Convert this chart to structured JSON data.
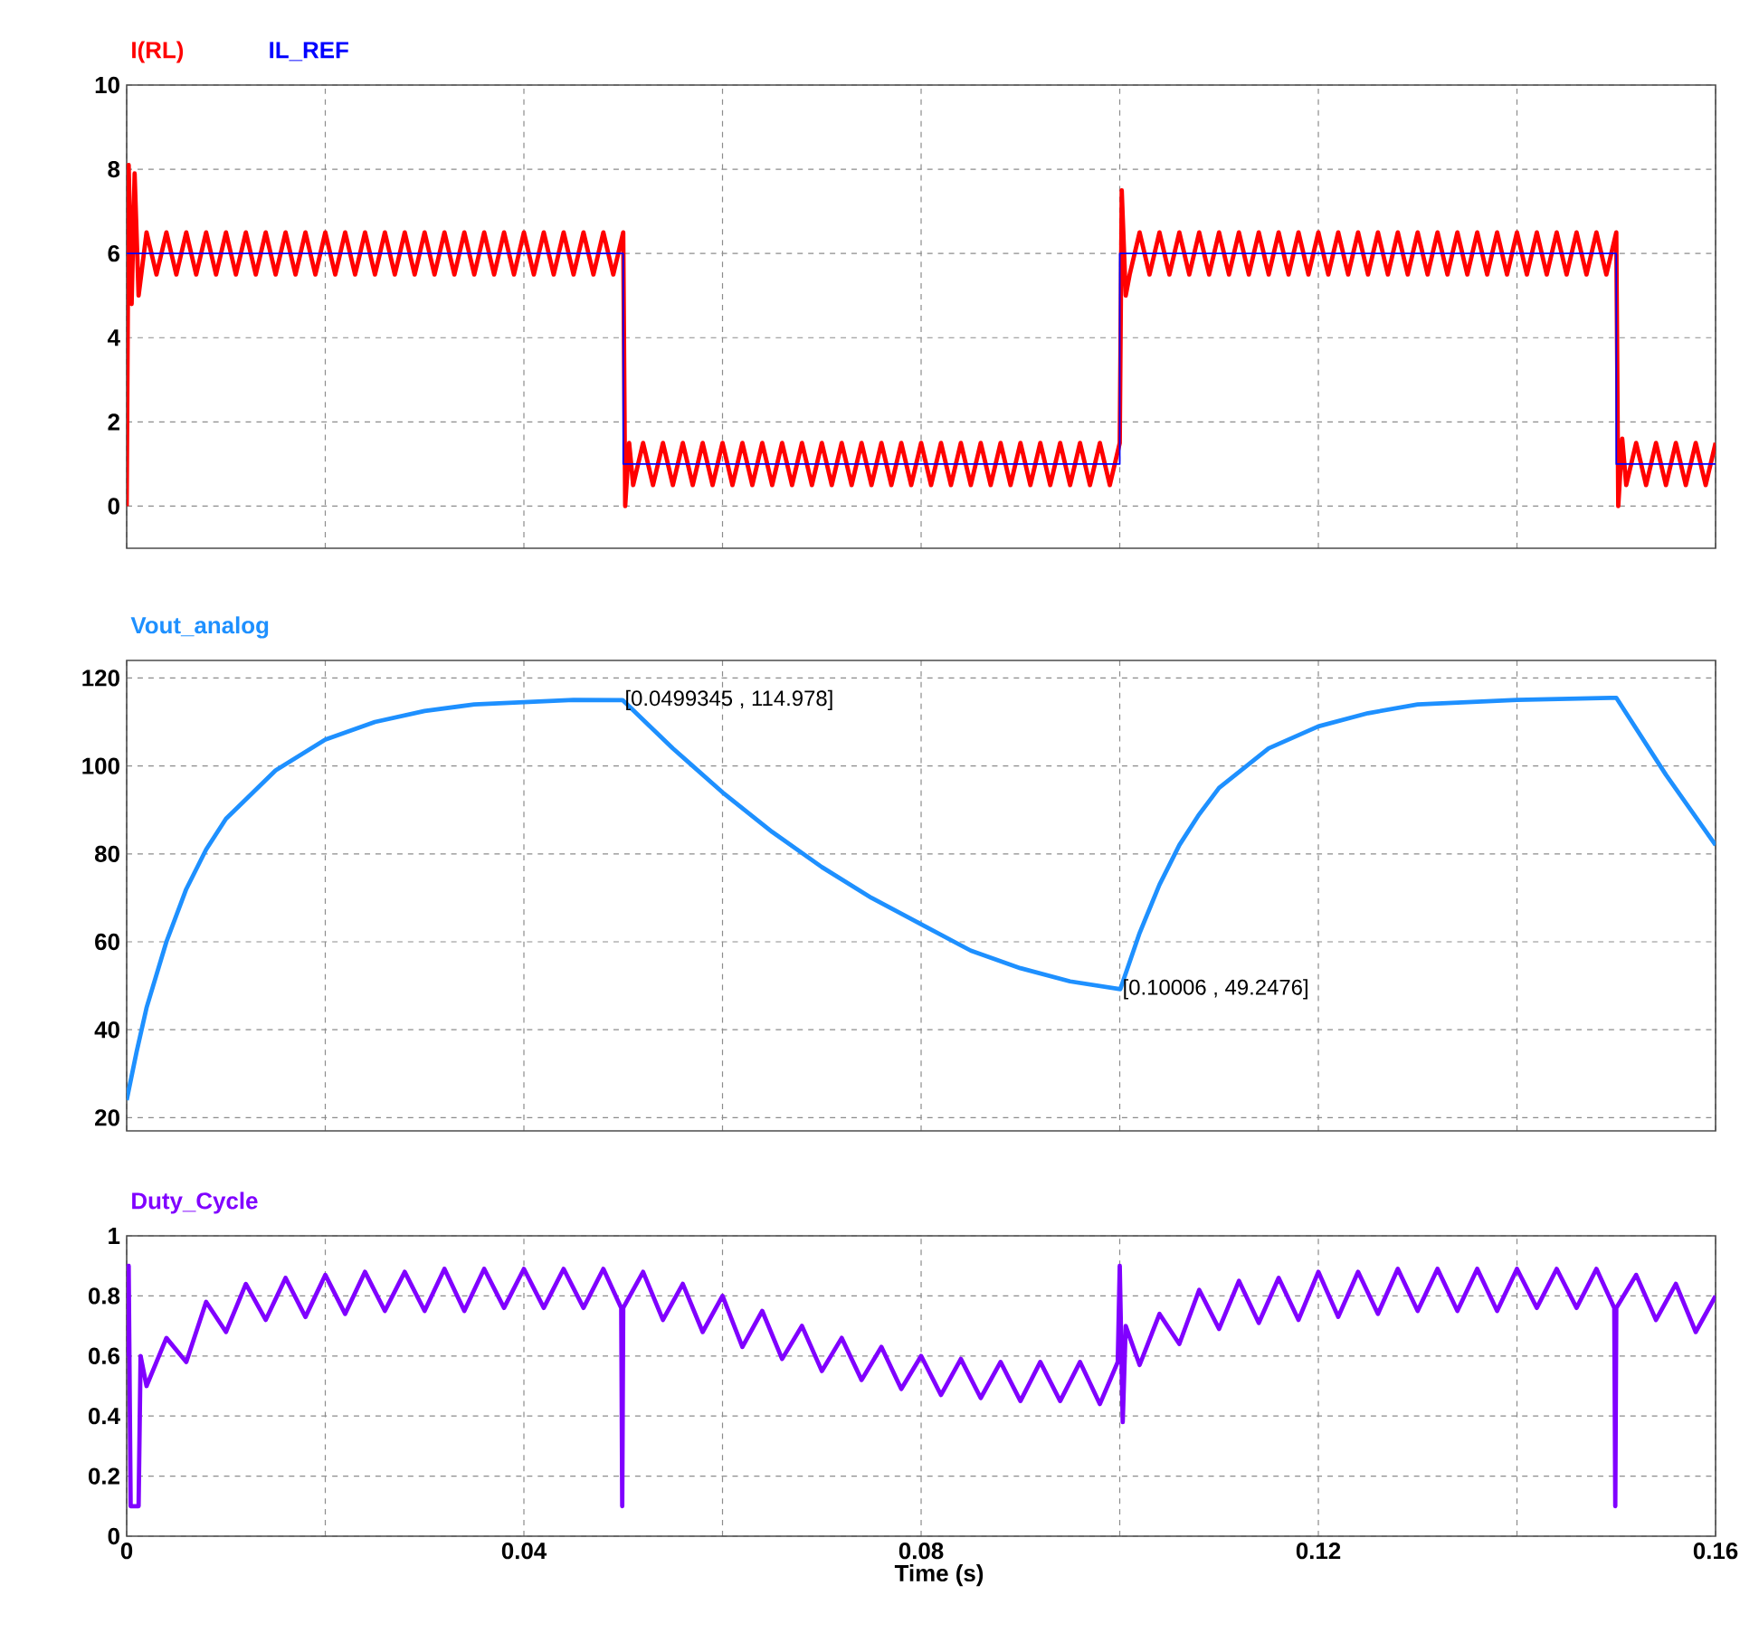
{
  "chart_data": [
    {
      "type": "line",
      "xlim": [
        0,
        0.16
      ],
      "ylim": [
        -1,
        10
      ],
      "grid": true,
      "tick_labels": "y",
      "xticks": [
        0,
        {
          "value": 0.02,
          "label": null
        },
        0.04,
        {
          "value": 0.06,
          "label": null
        },
        0.08,
        {
          "value": 0.1,
          "label": null
        },
        0.12,
        {
          "value": 0.14,
          "label": null
        },
        0.16
      ],
      "yticks": [
        0,
        2,
        4,
        6,
        8,
        10
      ],
      "series": [
        {
          "name": "I(RL)",
          "color": "#ff0000",
          "x": [
            0,
            0.0002,
            0.0005,
            0.0008,
            0.0012,
            0.002,
            0.003,
            0.004,
            0.005,
            0.006,
            0.007,
            0.008,
            0.009,
            0.01,
            0.011,
            0.012,
            0.013,
            0.014,
            0.015,
            0.016,
            0.017,
            0.018,
            0.019,
            0.02,
            0.021,
            0.022,
            0.023,
            0.024,
            0.025,
            0.026,
            0.027,
            0.028,
            0.029,
            0.03,
            0.031,
            0.032,
            0.033,
            0.034,
            0.035,
            0.036,
            0.037,
            0.038,
            0.039,
            0.04,
            0.041,
            0.042,
            0.043,
            0.044,
            0.045,
            0.046,
            0.047,
            0.048,
            0.049,
            0.05,
            0.0502,
            0.0506,
            0.051,
            0.052,
            0.053,
            0.054,
            0.055,
            0.056,
            0.057,
            0.058,
            0.059,
            0.06,
            0.061,
            0.062,
            0.063,
            0.064,
            0.065,
            0.066,
            0.067,
            0.068,
            0.069,
            0.07,
            0.071,
            0.072,
            0.073,
            0.074,
            0.075,
            0.076,
            0.077,
            0.078,
            0.079,
            0.08,
            0.081,
            0.082,
            0.083,
            0.084,
            0.085,
            0.086,
            0.087,
            0.088,
            0.089,
            0.09,
            0.091,
            0.092,
            0.093,
            0.094,
            0.095,
            0.096,
            0.097,
            0.098,
            0.099,
            0.1,
            0.1002,
            0.1006,
            0.101,
            0.102,
            0.103,
            0.104,
            0.105,
            0.106,
            0.107,
            0.108,
            0.109,
            0.11,
            0.111,
            0.112,
            0.113,
            0.114,
            0.115,
            0.116,
            0.117,
            0.118,
            0.119,
            0.12,
            0.121,
            0.122,
            0.123,
            0.124,
            0.125,
            0.126,
            0.127,
            0.128,
            0.129,
            0.13,
            0.131,
            0.132,
            0.133,
            0.134,
            0.135,
            0.136,
            0.137,
            0.138,
            0.139,
            0.14,
            0.141,
            0.142,
            0.143,
            0.144,
            0.145,
            0.146,
            0.147,
            0.148,
            0.149,
            0.15,
            0.1502,
            0.1506,
            0.151,
            0.152,
            0.153,
            0.154,
            0.155,
            0.156,
            0.157,
            0.158,
            0.159,
            0.16
          ],
          "values": [
            0,
            8.1,
            4.8,
            7.9,
            5.0,
            6.5,
            5.5,
            6.5,
            5.5,
            6.5,
            5.5,
            6.5,
            5.5,
            6.5,
            5.5,
            6.5,
            5.5,
            6.5,
            5.5,
            6.5,
            5.5,
            6.5,
            5.5,
            6.5,
            5.5,
            6.5,
            5.5,
            6.5,
            5.5,
            6.5,
            5.5,
            6.5,
            5.5,
            6.5,
            5.5,
            6.5,
            5.5,
            6.5,
            5.5,
            6.5,
            5.5,
            6.5,
            5.5,
            6.5,
            5.5,
            6.5,
            5.5,
            6.5,
            5.5,
            6.5,
            5.5,
            6.5,
            5.5,
            6.5,
            0,
            1.5,
            0.5,
            1.5,
            0.5,
            1.5,
            0.5,
            1.5,
            0.5,
            1.5,
            0.5,
            1.5,
            0.5,
            1.5,
            0.5,
            1.5,
            0.5,
            1.5,
            0.5,
            1.5,
            0.5,
            1.5,
            0.5,
            1.5,
            0.5,
            1.5,
            0.5,
            1.5,
            0.5,
            1.5,
            0.5,
            1.5,
            0.5,
            1.5,
            0.5,
            1.5,
            0.5,
            1.5,
            0.5,
            1.5,
            0.5,
            1.5,
            0.5,
            1.5,
            0.5,
            1.5,
            0.5,
            1.5,
            0.5,
            1.5,
            0.5,
            1.5,
            7.5,
            5.0,
            5.5,
            6.5,
            5.5,
            6.5,
            5.5,
            6.5,
            5.5,
            6.5,
            5.5,
            6.5,
            5.5,
            6.5,
            5.5,
            6.5,
            5.5,
            6.5,
            5.5,
            6.5,
            5.5,
            6.5,
            5.5,
            6.5,
            5.5,
            6.5,
            5.5,
            6.5,
            5.5,
            6.5,
            5.5,
            6.5,
            5.5,
            6.5,
            5.5,
            6.5,
            5.5,
            6.5,
            5.5,
            6.5,
            5.5,
            6.5,
            5.5,
            6.5,
            5.5,
            6.5,
            5.5,
            6.5,
            5.5,
            6.5,
            5.5,
            6.5,
            0,
            1.6,
            0.5,
            1.5,
            0.5,
            1.5,
            0.5,
            1.5,
            0.5,
            1.5,
            0.5,
            1.5
          ]
        },
        {
          "name": "IL_REF",
          "color": "#0000ff",
          "x": [
            0,
            0.05,
            0.05,
            0.1,
            0.1,
            0.15,
            0.15,
            0.16
          ],
          "values": [
            6,
            6,
            1,
            1,
            6,
            6,
            1,
            1
          ]
        }
      ]
    },
    {
      "type": "line",
      "xlim": [
        0,
        0.16
      ],
      "ylim": [
        17,
        124
      ],
      "grid": true,
      "tick_labels": "y",
      "xticks": [
        0,
        {
          "value": 0.02,
          "label": null
        },
        0.04,
        {
          "value": 0.06,
          "label": null
        },
        0.08,
        {
          "value": 0.1,
          "label": null
        },
        0.12,
        {
          "value": 0.14,
          "label": null
        },
        0.16
      ],
      "yticks": [
        20,
        40,
        60,
        80,
        100,
        120
      ],
      "annotations": [
        {
          "text": "[0.0499345 , 114.978]",
          "x": 0.0499345,
          "y": 114.978
        },
        {
          "text": "[0.10006 , 49.2476]",
          "x": 0.10006,
          "y": 49.2476
        }
      ],
      "series": [
        {
          "name": "Vout_analog",
          "color": "#1e90ff",
          "x": [
            0,
            0.001,
            0.002,
            0.004,
            0.006,
            0.008,
            0.01,
            0.015,
            0.02,
            0.025,
            0.03,
            0.035,
            0.04,
            0.045,
            0.0499345,
            0.055,
            0.06,
            0.065,
            0.07,
            0.075,
            0.08,
            0.085,
            0.09,
            0.095,
            0.10006,
            0.102,
            0.104,
            0.106,
            0.108,
            0.11,
            0.115,
            0.12,
            0.125,
            0.13,
            0.14,
            0.15,
            0.155,
            0.16
          ],
          "values": [
            24,
            35,
            45,
            60,
            72,
            81,
            88,
            99,
            106,
            110,
            112.5,
            114,
            114.5,
            115,
            114.978,
            104,
            94,
            85,
            77,
            70,
            64,
            58,
            54,
            51,
            49.2476,
            62,
            73,
            82,
            89,
            95,
            104,
            109,
            112,
            114,
            115,
            115.5,
            98,
            82
          ]
        }
      ]
    },
    {
      "type": "line",
      "xlim": [
        0,
        0.16
      ],
      "ylim": [
        0,
        1
      ],
      "grid": true,
      "xlabel": "Time (s)",
      "xticks": [
        0,
        {
          "value": 0.02,
          "label": null
        },
        0.04,
        {
          "value": 0.06,
          "label": null
        },
        0.08,
        {
          "value": 0.1,
          "label": null
        },
        0.12,
        {
          "value": 0.14,
          "label": null
        },
        0.16
      ],
      "yticks": [
        0,
        0.2,
        0.4,
        0.6,
        0.8,
        1
      ],
      "series": [
        {
          "name": "Duty_Cycle",
          "color": "#8000ff",
          "x": [
            0,
            0.0002,
            0.0004,
            0.0012,
            0.0014,
            0.002,
            0.004,
            0.006,
            0.008,
            0.01,
            0.012,
            0.014,
            0.016,
            0.018,
            0.02,
            0.022,
            0.024,
            0.026,
            0.028,
            0.03,
            0.032,
            0.034,
            0.036,
            0.038,
            0.04,
            0.042,
            0.044,
            0.046,
            0.048,
            0.0498,
            0.0499,
            0.05,
            0.052,
            0.054,
            0.056,
            0.058,
            0.06,
            0.062,
            0.064,
            0.066,
            0.068,
            0.07,
            0.072,
            0.074,
            0.076,
            0.078,
            0.08,
            0.082,
            0.084,
            0.086,
            0.088,
            0.09,
            0.092,
            0.094,
            0.096,
            0.098,
            0.0998,
            0.1,
            0.1003,
            0.1006,
            0.102,
            0.104,
            0.106,
            0.108,
            0.11,
            0.112,
            0.114,
            0.116,
            0.118,
            0.12,
            0.122,
            0.124,
            0.126,
            0.128,
            0.13,
            0.132,
            0.134,
            0.136,
            0.138,
            0.14,
            0.142,
            0.144,
            0.146,
            0.148,
            0.1498,
            0.1499,
            0.15,
            0.152,
            0.154,
            0.156,
            0.158,
            0.16
          ],
          "values": [
            0.6,
            0.9,
            0.1,
            0.1,
            0.6,
            0.5,
            0.66,
            0.58,
            0.78,
            0.68,
            0.84,
            0.72,
            0.86,
            0.73,
            0.87,
            0.74,
            0.88,
            0.75,
            0.88,
            0.75,
            0.89,
            0.75,
            0.89,
            0.76,
            0.89,
            0.76,
            0.89,
            0.76,
            0.89,
            0.76,
            0.1,
            0.76,
            0.88,
            0.72,
            0.84,
            0.68,
            0.8,
            0.63,
            0.75,
            0.59,
            0.7,
            0.55,
            0.66,
            0.52,
            0.63,
            0.49,
            0.6,
            0.47,
            0.59,
            0.46,
            0.58,
            0.45,
            0.58,
            0.45,
            0.58,
            0.44,
            0.58,
            0.9,
            0.38,
            0.7,
            0.57,
            0.74,
            0.64,
            0.82,
            0.69,
            0.85,
            0.71,
            0.86,
            0.72,
            0.88,
            0.73,
            0.88,
            0.74,
            0.89,
            0.75,
            0.89,
            0.75,
            0.89,
            0.75,
            0.89,
            0.76,
            0.89,
            0.76,
            0.89,
            0.76,
            0.1,
            0.76,
            0.87,
            0.72,
            0.84,
            0.68,
            0.8
          ]
        }
      ]
    }
  ]
}
